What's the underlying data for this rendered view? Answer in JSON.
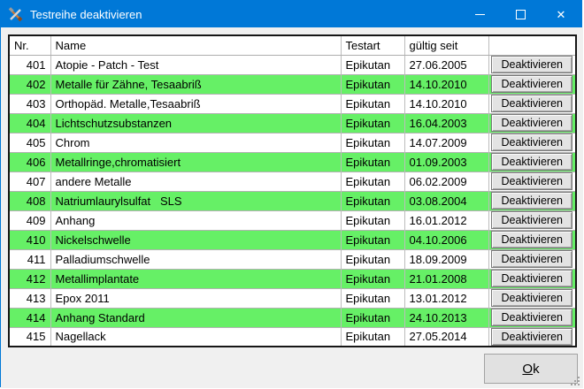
{
  "window": {
    "title": "Testreihe deaktivieren"
  },
  "colors": {
    "titlebar": "#0078d7",
    "row_highlight": "#66f066",
    "client_bg": "#f0f0f0"
  },
  "table": {
    "headers": [
      "Nr.",
      "Name",
      "Testart",
      "gültig seit",
      ""
    ],
    "row_button_label": "Deaktivieren",
    "rows": [
      {
        "nr": "401",
        "name": "Atopie - Patch - Test",
        "testart": "Epikutan",
        "gueltig_seit": "27.06.2005",
        "highlighted": false
      },
      {
        "nr": "402",
        "name": "Metalle für Zähne, Tesaabriß",
        "testart": "Epikutan",
        "gueltig_seit": "14.10.2010",
        "highlighted": true
      },
      {
        "nr": "403",
        "name": "Orthopäd. Metalle,Tesaabriß",
        "testart": "Epikutan",
        "gueltig_seit": "14.10.2010",
        "highlighted": false
      },
      {
        "nr": "404",
        "name": "Lichtschutzsubstanzen",
        "testart": "Epikutan",
        "gueltig_seit": "16.04.2003",
        "highlighted": true
      },
      {
        "nr": "405",
        "name": "Chrom",
        "testart": "Epikutan",
        "gueltig_seit": "14.07.2009",
        "highlighted": false
      },
      {
        "nr": "406",
        "name": "Metallringe,chromatisiert",
        "testart": "Epikutan",
        "gueltig_seit": "01.09.2003",
        "highlighted": true
      },
      {
        "nr": "407",
        "name": "andere Metalle",
        "testart": "Epikutan",
        "gueltig_seit": "06.02.2009",
        "highlighted": false
      },
      {
        "nr": "408",
        "name": "Natriumlaurylsulfat   SLS",
        "testart": "Epikutan",
        "gueltig_seit": "03.08.2004",
        "highlighted": true
      },
      {
        "nr": "409",
        "name": "Anhang",
        "testart": "Epikutan",
        "gueltig_seit": "16.01.2012",
        "highlighted": false
      },
      {
        "nr": "410",
        "name": "Nickelschwelle",
        "testart": "Epikutan",
        "gueltig_seit": "04.10.2006",
        "highlighted": true
      },
      {
        "nr": "411",
        "name": "Palladiumschwelle",
        "testart": "Epikutan",
        "gueltig_seit": "18.09.2009",
        "highlighted": false
      },
      {
        "nr": "412",
        "name": "Metallimplantate",
        "testart": "Epikutan",
        "gueltig_seit": "21.01.2008",
        "highlighted": true
      },
      {
        "nr": "413",
        "name": "Epox 2011",
        "testart": "Epikutan",
        "gueltig_seit": "13.01.2012",
        "highlighted": false
      },
      {
        "nr": "414",
        "name": "Anhang Standard",
        "testart": "Epikutan",
        "gueltig_seit": "24.10.2013",
        "highlighted": true
      },
      {
        "nr": "415",
        "name": "Nagellack",
        "testart": "Epikutan",
        "gueltig_seit": "27.05.2014",
        "highlighted": false
      }
    ]
  },
  "footer": {
    "ok_accel": "O",
    "ok_rest": "k"
  }
}
